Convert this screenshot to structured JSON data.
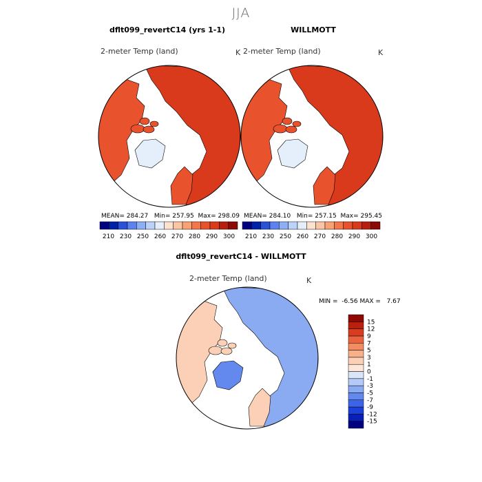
{
  "season": "JJA",
  "panels": [
    {
      "title": "dflt099_revertC14 (yrs 1-1)",
      "variable": "2-meter Temp (land)",
      "unit": "K",
      "stats": {
        "mean_label": "MEAN=",
        "mean": "284.27",
        "min_label": "Min=",
        "min": "257.95",
        "max_label": "Max=",
        "max": "298.09"
      }
    },
    {
      "title": "WILLMOTT",
      "variable": "2-meter Temp (land)",
      "unit": "K",
      "stats": {
        "mean_label": "MEAN=",
        "mean": "284.10",
        "min_label": "Min=",
        "min": "257.15",
        "max_label": "Max=",
        "max": "295.45"
      }
    },
    {
      "title": "dflt099_revertC14 - WILLMOTT",
      "variable": "2-meter Temp (land)",
      "unit": "K",
      "minmax": {
        "min_label": "MIN =",
        "min": "-6.56",
        "max_label": "MAX =",
        "max": "7.67"
      }
    }
  ],
  "colorbar_abs": {
    "colors": [
      "#00007f",
      "#0022a8",
      "#2b52d6",
      "#5b82ee",
      "#8caff5",
      "#bcd2f8",
      "#e5eefb",
      "#fde2cf",
      "#fbc5a3",
      "#f8a172",
      "#f3774a",
      "#e8522d",
      "#d93a1b",
      "#b81e0e",
      "#8c0a04"
    ],
    "labels": [
      "210",
      "230",
      "250",
      "260",
      "270",
      "280",
      "290",
      "300"
    ]
  },
  "colorbar_diff": {
    "colors": [
      "#000080",
      "#0820b8",
      "#1d40d8",
      "#3c64e6",
      "#6388ee",
      "#8aaaf2",
      "#b3cbf6",
      "#d9e5f9",
      "#fde7d8",
      "#fbd0b6",
      "#f8b08a",
      "#f38c62",
      "#e9643e",
      "#d83d20",
      "#bb1f0d",
      "#8f0804"
    ],
    "labels": [
      "-15",
      "-12",
      "-9",
      "-7",
      "-5",
      "-3",
      "-1",
      "0",
      "1",
      "3",
      "5",
      "7",
      "9",
      "12",
      "15"
    ]
  },
  "chart_data": [
    {
      "type": "heatmap",
      "projection": "north polar stereographic",
      "title": "dflt099_revertC14 (yrs 1-1)",
      "variable": "2-meter Temp (land)",
      "units": "K",
      "mean": 284.27,
      "min": 257.95,
      "max": 298.09,
      "contour_levels": [
        210,
        230,
        250,
        260,
        270,
        280,
        290,
        300
      ]
    },
    {
      "type": "heatmap",
      "projection": "north polar stereographic",
      "title": "WILLMOTT",
      "variable": "2-meter Temp (land)",
      "units": "K",
      "mean": 284.1,
      "min": 257.15,
      "max": 295.45,
      "contour_levels": [
        210,
        230,
        250,
        260,
        270,
        280,
        290,
        300
      ]
    },
    {
      "type": "heatmap",
      "projection": "north polar stereographic",
      "title": "dflt099_revertC14 - WILLMOTT",
      "variable": "2-meter Temp (land)",
      "units": "K",
      "min": -6.56,
      "max": 7.67,
      "contour_levels": [
        -15,
        -12,
        -9,
        -7,
        -5,
        -3,
        -1,
        0,
        1,
        3,
        5,
        7,
        9,
        12,
        15
      ]
    }
  ]
}
